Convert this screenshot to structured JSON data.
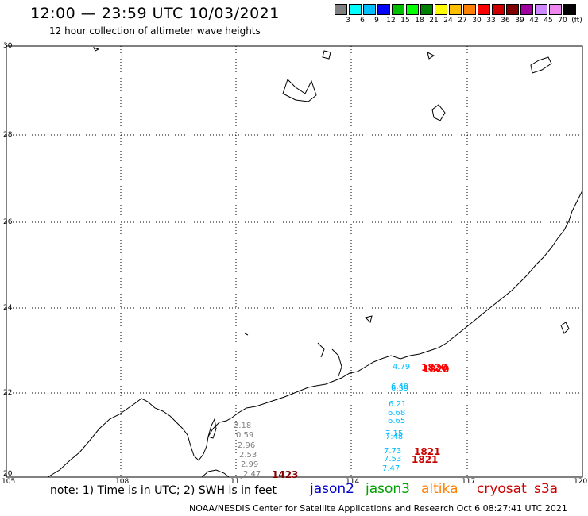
{
  "header": {
    "title": "12:00 — 23:59 UTC 10/03/2021",
    "subtitle": "12 hour collection of altimeter wave heights"
  },
  "colorbar": {
    "colors": [
      "#808080",
      "#00ffff",
      "#00bfff",
      "#0000ff",
      "#00bf00",
      "#00ff00",
      "#008000",
      "#ffff00",
      "#ffbf00",
      "#ff8000",
      "#ff0000",
      "#cc0000",
      "#800000",
      "#a000a0",
      "#cc88ff",
      "#ee88ee",
      "#000000"
    ],
    "labels": [
      "3",
      "6",
      "9",
      "12",
      "15",
      "18",
      "21",
      "24",
      "27",
      "30",
      "33",
      "36",
      "39",
      "42",
      "45",
      "70",
      "(ft)"
    ]
  },
  "axes": {
    "lat_labels": [
      "30",
      "28",
      "26",
      "24",
      "22",
      "20"
    ],
    "lon_labels": [
      "105",
      "108",
      "111",
      "114",
      "117",
      "120"
    ]
  },
  "observations": {
    "gray_values": [
      "2.18",
      "0.59",
      "2.96",
      "2.53",
      "2.99",
      "2.47"
    ],
    "cyan_values": [
      "4.79",
      "6.49",
      "6.39",
      "6.21",
      "6.68",
      "6.65",
      "7.15",
      "7.48",
      "7.73",
      "7.53",
      "7.47"
    ]
  },
  "pass_times": [
    "1820",
    "1820",
    "1821",
    "1821",
    "1423"
  ],
  "note": "note: 1) Time is in UTC; 2) SWH is in feet",
  "missions": [
    "jason2",
    "jason3",
    "altika",
    "cryosat",
    "s3a"
  ],
  "footer": "NOAA/NESDIS Center for Satellite Applications and Research   Oct  6 08:27:41 UTC 2021"
}
